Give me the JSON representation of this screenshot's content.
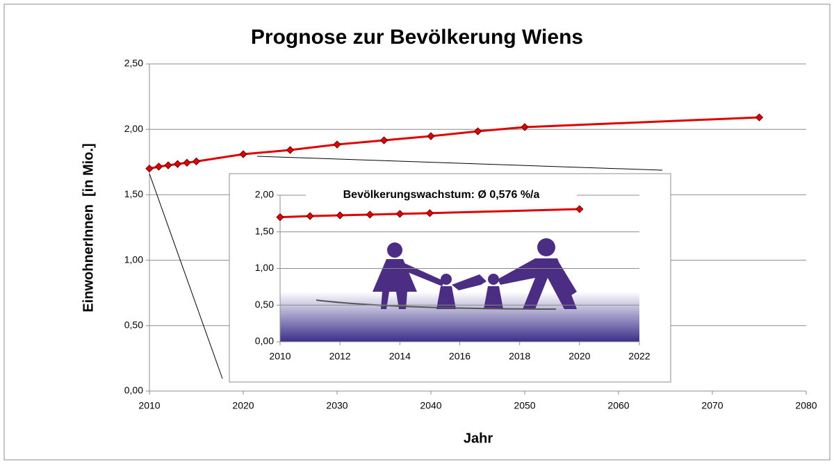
{
  "chart_data": [
    {
      "type": "line",
      "title": "Prognose zur Bevölkerung Wiens",
      "xlabel": "Jahr",
      "ylabel": "EinwohnerInnen  [in Mio.]",
      "x": [
        2010,
        2011,
        2012,
        2013,
        2014,
        2015,
        2020,
        2025,
        2030,
        2035,
        2040,
        2045,
        2050,
        2075
      ],
      "values": [
        1.7,
        1.715,
        1.725,
        1.735,
        1.745,
        1.755,
        1.81,
        1.842,
        1.884,
        1.916,
        1.948,
        1.985,
        2.017,
        2.091
      ],
      "color": "#e00000",
      "xlim": [
        2010,
        2080
      ],
      "xticks": [
        2010,
        2020,
        2030,
        2040,
        2050,
        2060,
        2070,
        2080
      ],
      "ylim": [
        0,
        2.5
      ],
      "yticks": [
        {
          "value": 0,
          "label": "0,00"
        },
        {
          "value": 0.5,
          "label": "0,50"
        },
        {
          "value": 1,
          "label": "1,00"
        },
        {
          "value": 1.5,
          "label": "1,50"
        },
        {
          "value": 2,
          "label": "2,00"
        },
        {
          "value": 2.5,
          "label": "2,50"
        }
      ],
      "grid": true
    },
    {
      "type": "line",
      "title": "Bevölkerungswachstum: Ø 0,576 %/a",
      "x": [
        2010,
        2011,
        2012,
        2013,
        2014,
        2015,
        2020
      ],
      "values": [
        1.7,
        1.715,
        1.725,
        1.735,
        1.745,
        1.755,
        1.81
      ],
      "color": "#e00000",
      "xlim": [
        2010,
        2022
      ],
      "xticks": [
        2010,
        2012,
        2014,
        2016,
        2018,
        2020,
        2022
      ],
      "ylim": [
        0,
        2
      ],
      "yticks": [
        {
          "value": 0,
          "label": "0,00"
        },
        {
          "value": 0.5,
          "label": "0,50"
        },
        {
          "value": 1,
          "label": "1,00"
        },
        {
          "value": 1.5,
          "label": "1,50"
        },
        {
          "value": 2,
          "label": "2,00"
        }
      ],
      "grid": true
    }
  ]
}
